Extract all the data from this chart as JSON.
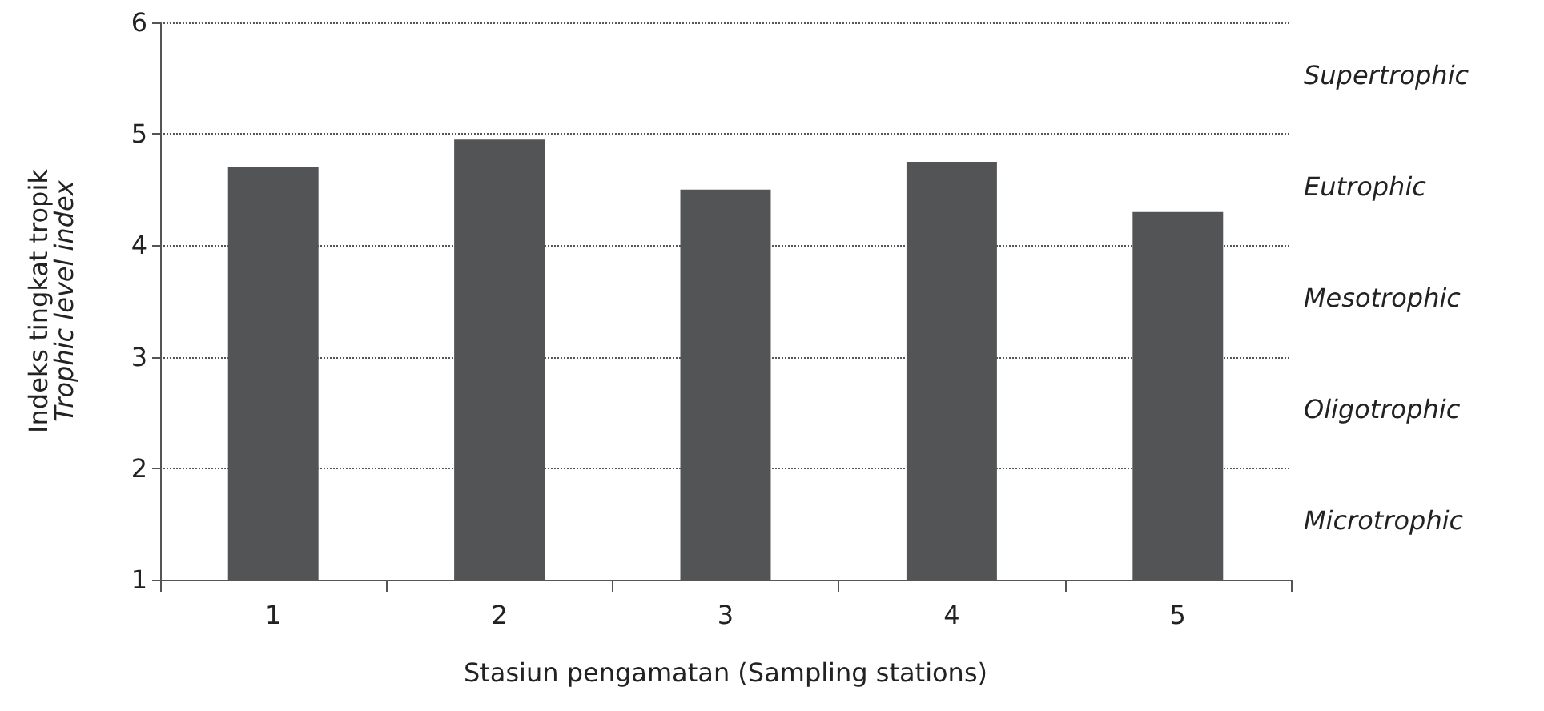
{
  "chart_data": {
    "type": "bar",
    "xlabel": "Stasiun pengamatan (Sampling stations)",
    "ylabel": "Indeks tingkat tropik\nTrophic level index",
    "categories": [
      "1",
      "2",
      "3",
      "4",
      "5"
    ],
    "values": [
      4.7,
      4.95,
      4.5,
      4.75,
      4.3
    ],
    "color": "#535456",
    "ylim": [
      1,
      6
    ],
    "yticks": [
      1,
      2,
      3,
      4,
      5,
      6
    ],
    "grid": "y",
    "annotations": [
      "Supertrophic",
      "Eutrophic",
      "Mesotrophic",
      "Oligotrophic",
      "Microtrophic"
    ]
  }
}
